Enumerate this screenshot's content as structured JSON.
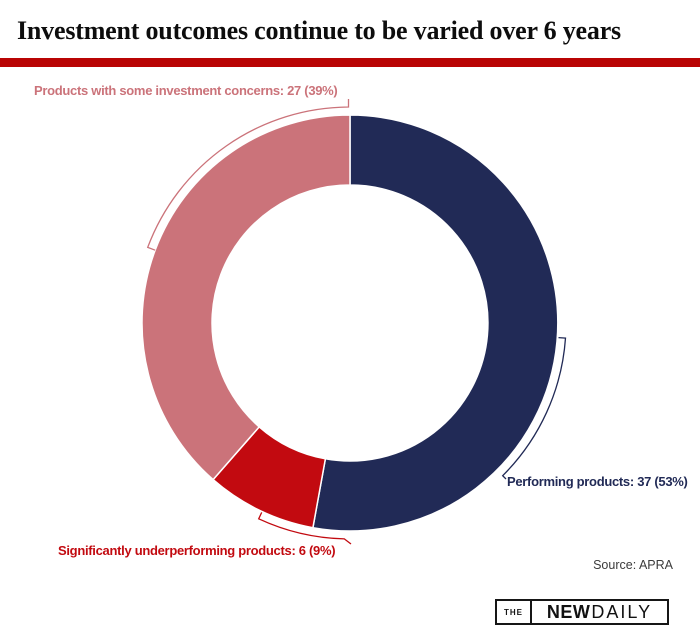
{
  "header": {
    "title": "Investment outcomes continue to be varied over 6 years",
    "accent_color": "#b90404"
  },
  "chart_data": {
    "type": "pie",
    "subtype": "donut",
    "title": "Investment outcomes continue to be varied over 6 years",
    "total": 70,
    "unit": "products",
    "start_angle": "12 o'clock",
    "direction": "clockwise",
    "inner_radius_ratio": 0.66,
    "legend_position": "outside-callouts",
    "segments": [
      {
        "id": "performing",
        "label": "Performing products",
        "value": 37,
        "percent": 53,
        "color": "#212a56",
        "annotation": "Performing products: 37 (53%)"
      },
      {
        "id": "significantly-underperforming",
        "label": "Significantly underperforming products",
        "value": 6,
        "percent": 9,
        "color": "#c20a10",
        "annotation": "Significantly underperforming products: 6 (9%)"
      },
      {
        "id": "investment-concerns",
        "label": "Products with some investment concerns",
        "value": 27,
        "percent": 39,
        "color": "#cb737a",
        "annotation": "Products with some investment concerns: 27 (39%)"
      }
    ]
  },
  "source": {
    "text": "Source: APRA"
  },
  "logo": {
    "the": "THE",
    "new": "NEW",
    "daily": "DAILY"
  }
}
